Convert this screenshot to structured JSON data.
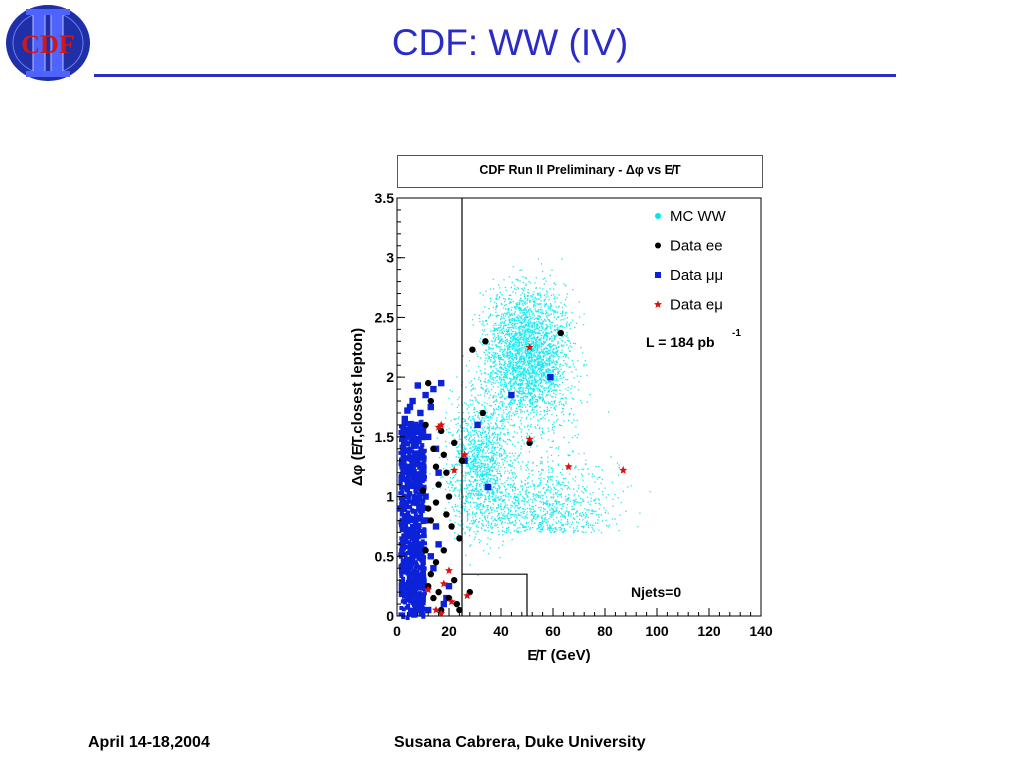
{
  "slide": {
    "title": "CDF:  WW (IV)",
    "logo_text": "CDF",
    "footer_left": "April 14-18,2004",
    "footer_right": "Susana Cabrera, Duke University"
  },
  "colors": {
    "title_blue": "#2b2bc6",
    "mc_ww": "#00e8ee",
    "data_ee": "#000000",
    "data_mumu": "#0b22d8",
    "data_emu": "#e01010",
    "logo_blue": "#1e2fa8",
    "logo_red": "#d01818"
  },
  "chart_data": {
    "type": "scatter",
    "title": "CDF Run II Preliminary -  Δφ vs E̸T",
    "xlabel": "E̸T (GeV)",
    "ylabel": "Δφ (E̸T,closest lepton)",
    "xlim": [
      0,
      140
    ],
    "ylim": [
      0,
      3.5
    ],
    "x_ticks": [
      0,
      20,
      40,
      60,
      80,
      100,
      120,
      140
    ],
    "y_ticks": [
      0,
      0.5,
      1,
      1.5,
      2,
      2.5,
      3,
      3.5
    ],
    "y_tick_labels": [
      "0",
      "0.5",
      "1",
      "1.5",
      "2",
      "2.5",
      "3",
      "3.5"
    ],
    "grid": false,
    "legend_position": "top-right",
    "annotations": [
      "L = 184 pb",
      "-1",
      "Njets=0"
    ],
    "cut_lines": {
      "vertical_x": 25,
      "box_x": [
        25,
        50
      ],
      "box_y_max": 0.35
    },
    "series": [
      {
        "name": "MC WW",
        "marker": "dot",
        "color": "#00e8ee",
        "density_note": "dense cloud",
        "x": [],
        "y": []
      },
      {
        "name": "Data ee",
        "marker": "circle",
        "color": "#000000",
        "x": [
          63,
          34,
          29,
          51,
          33,
          25,
          22,
          17,
          18,
          15,
          12,
          13,
          11,
          14,
          16,
          20,
          19,
          21,
          24,
          18,
          15,
          13,
          12,
          16,
          22,
          28,
          23,
          17,
          14,
          11,
          13,
          15,
          19,
          10,
          12,
          20,
          24
        ],
        "y": [
          2.37,
          2.3,
          2.23,
          1.45,
          1.7,
          1.3,
          1.45,
          1.55,
          1.35,
          1.25,
          1.95,
          1.8,
          1.6,
          1.4,
          1.1,
          1.0,
          0.85,
          0.75,
          0.65,
          0.55,
          0.45,
          0.35,
          0.25,
          0.2,
          0.3,
          0.2,
          0.1,
          0.05,
          0.15,
          0.55,
          0.8,
          0.95,
          1.2,
          1.05,
          0.9,
          0.15,
          0.05
        ]
      },
      {
        "name": "Data μμ",
        "marker": "square",
        "color": "#0b22d8",
        "x": [
          59,
          44,
          31,
          26,
          35,
          17,
          14,
          8,
          6,
          11,
          13,
          9,
          5,
          4,
          7,
          10,
          12,
          3,
          15,
          16,
          2,
          6,
          9,
          11,
          4,
          8,
          13,
          14,
          10,
          5,
          7,
          12,
          18,
          20,
          16,
          3,
          1,
          6,
          9,
          15,
          11,
          19,
          8
        ],
        "y": [
          2.0,
          1.85,
          1.6,
          1.3,
          1.08,
          1.95,
          1.9,
          1.93,
          1.8,
          1.85,
          1.75,
          1.7,
          1.75,
          1.72,
          1.6,
          1.55,
          1.5,
          1.65,
          1.4,
          1.2,
          1.3,
          1.1,
          0.9,
          0.8,
          0.7,
          0.6,
          0.5,
          0.4,
          0.3,
          0.2,
          0.1,
          0.05,
          0.1,
          0.25,
          0.6,
          0.45,
          0.9,
          0.35,
          1.25,
          0.75,
          1.0,
          0.15,
          0.15
        ]
      },
      {
        "name": "Data eμ",
        "marker": "star",
        "color": "#e01010",
        "x": [
          51,
          51,
          66,
          87,
          22,
          26,
          17,
          16,
          20,
          18,
          27,
          21,
          15,
          17,
          12
        ],
        "y": [
          2.25,
          1.48,
          1.25,
          1.22,
          1.22,
          1.35,
          1.6,
          1.58,
          0.38,
          0.27,
          0.17,
          0.12,
          0.05,
          0.02,
          0.22
        ]
      }
    ]
  }
}
